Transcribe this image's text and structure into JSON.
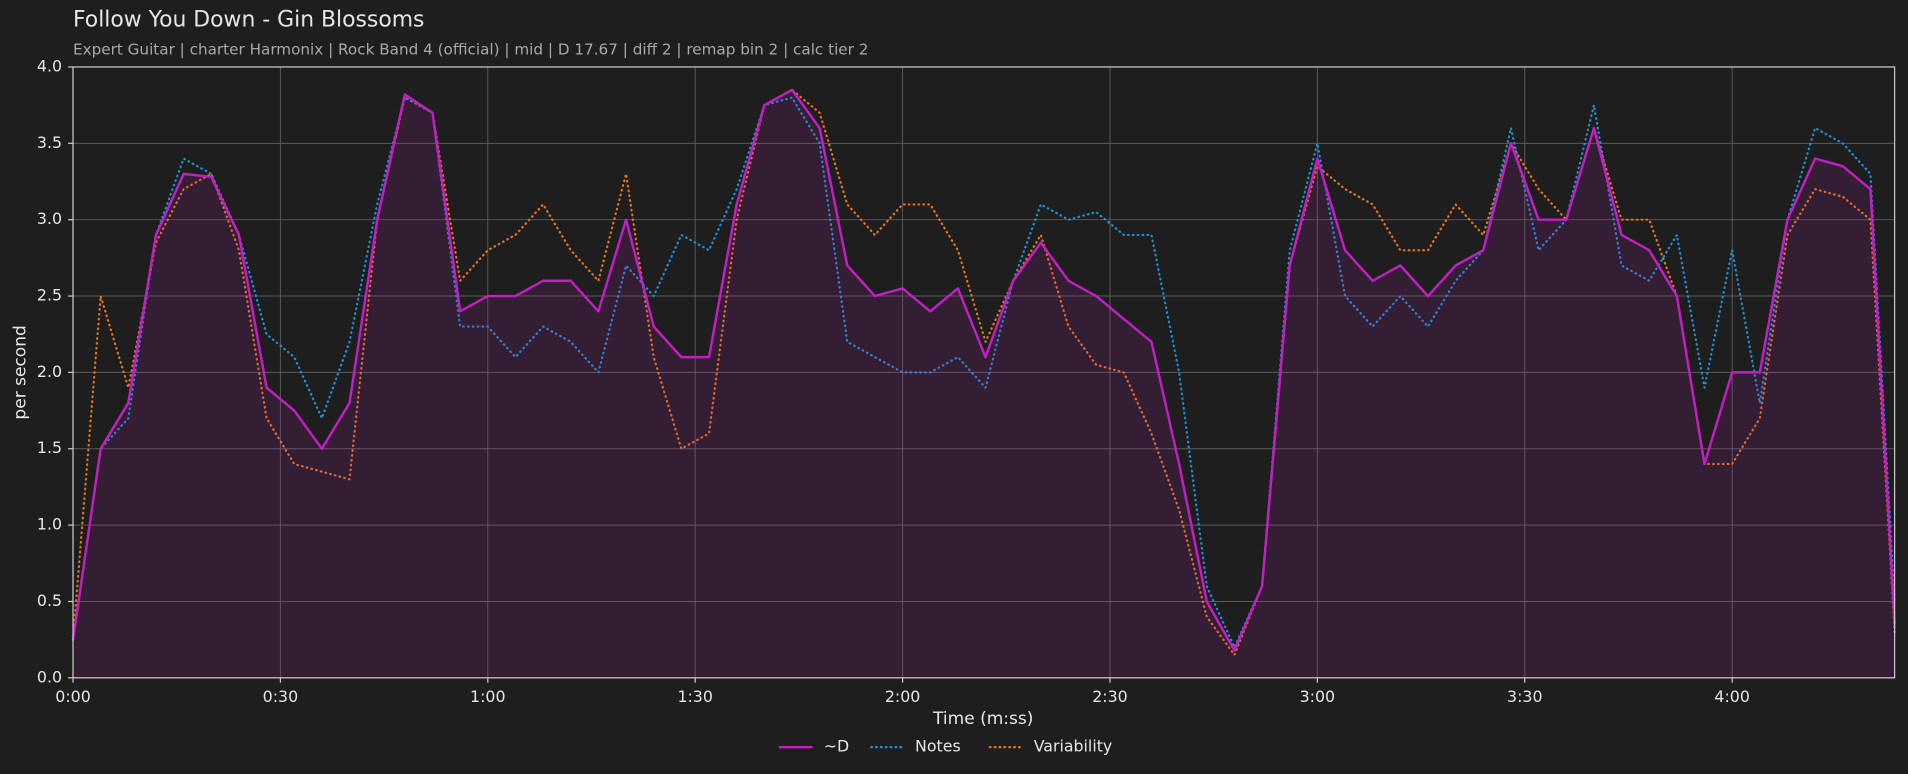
{
  "chart_data": {
    "type": "line",
    "title": "Follow You Down - Gin Blossoms",
    "subtitle": "Expert Guitar  |  charter Harmonix  |  Rock Band 4 (official)  |  mid  |  D 17.67  |  diff 2  |  remap bin 2  |  calc tier 2",
    "x_label": "Time (m:ss)",
    "y_label": "per second",
    "grid": true,
    "legend": "bottom",
    "xlim": [
      0,
      263.5
    ],
    "ylim": [
      0,
      4
    ],
    "xticks": [
      {
        "value": 0,
        "label": "0:00"
      },
      {
        "value": 30,
        "label": "0:30"
      },
      {
        "value": 60,
        "label": "1:00"
      },
      {
        "value": 90,
        "label": "1:30"
      },
      {
        "value": 120,
        "label": "2:00"
      },
      {
        "value": 150,
        "label": "2:30"
      },
      {
        "value": 180,
        "label": "3:00"
      },
      {
        "value": 210,
        "label": "3:30"
      },
      {
        "value": 240,
        "label": "4:00"
      }
    ],
    "yticks": [
      {
        "value": 0,
        "label": "0.0"
      },
      0.5,
      {
        "value": 1,
        "label": "1.0"
      },
      1.5,
      {
        "value": 2,
        "label": "2.0"
      },
      2.5,
      {
        "value": 3,
        "label": "3.0"
      },
      3.5,
      {
        "value": 4,
        "label": "4.0"
      }
    ],
    "x": [
      0,
      4,
      8,
      12,
      16,
      20,
      24,
      28,
      32,
      36,
      40,
      44,
      48,
      52,
      56,
      60,
      64,
      68,
      72,
      76,
      80,
      84,
      88,
      92,
      96,
      100,
      104,
      108,
      112,
      116,
      120,
      124,
      128,
      132,
      136,
      140,
      144,
      148,
      152,
      156,
      160,
      164,
      168,
      172,
      176,
      180,
      184,
      188,
      192,
      196,
      200,
      204,
      208,
      212,
      216,
      220,
      224,
      228,
      232,
      236,
      240,
      244,
      248,
      252,
      256,
      260,
      263.5
    ],
    "series": [
      {
        "name": "~D",
        "color": "#c21fc2",
        "fill": true,
        "values": [
          0.25,
          1.5,
          1.8,
          2.9,
          3.3,
          3.28,
          2.9,
          1.9,
          1.75,
          1.5,
          1.8,
          3.0,
          3.82,
          3.7,
          2.4,
          2.5,
          2.5,
          2.6,
          2.6,
          2.4,
          3.0,
          2.3,
          2.1,
          2.1,
          3.1,
          3.75,
          3.85,
          3.6,
          2.7,
          2.5,
          2.55,
          2.4,
          2.55,
          2.1,
          2.6,
          2.85,
          2.6,
          2.5,
          2.35,
          2.2,
          1.4,
          0.5,
          0.18,
          0.6,
          2.7,
          3.4,
          2.8,
          2.6,
          2.7,
          2.5,
          2.7,
          2.8,
          3.5,
          3.0,
          3.0,
          3.6,
          2.9,
          2.8,
          2.5,
          1.4,
          2.0,
          2.0,
          3.0,
          3.4,
          3.35,
          3.2,
          0.35
        ]
      },
      {
        "name": "Notes",
        "color": "#1f8fd6",
        "dotted": true,
        "values": [
          0.25,
          1.5,
          1.7,
          2.9,
          3.4,
          3.3,
          2.9,
          2.25,
          2.1,
          1.7,
          2.2,
          3.1,
          3.8,
          3.7,
          2.3,
          2.3,
          2.1,
          2.3,
          2.2,
          2.0,
          2.7,
          2.5,
          2.9,
          2.8,
          3.2,
          3.75,
          3.8,
          3.5,
          2.2,
          2.1,
          2.0,
          2.0,
          2.1,
          1.9,
          2.6,
          3.1,
          3.0,
          3.05,
          2.9,
          2.9,
          2.0,
          0.6,
          0.2,
          0.6,
          2.8,
          3.5,
          2.5,
          2.3,
          2.5,
          2.3,
          2.6,
          2.8,
          3.6,
          2.8,
          3.0,
          3.75,
          2.7,
          2.6,
          2.9,
          1.9,
          2.8,
          1.8,
          3.0,
          3.6,
          3.5,
          3.3,
          0.5
        ]
      },
      {
        "name": "Variability",
        "color": "#e8731e",
        "dotted": true,
        "values": [
          0.25,
          2.5,
          1.9,
          2.85,
          3.2,
          3.3,
          2.8,
          1.7,
          1.4,
          1.35,
          1.3,
          3.0,
          3.8,
          3.7,
          2.6,
          2.8,
          2.9,
          3.1,
          2.8,
          2.6,
          3.3,
          2.1,
          1.5,
          1.6,
          3.0,
          3.75,
          3.85,
          3.7,
          3.1,
          2.9,
          3.1,
          3.1,
          2.8,
          2.2,
          2.6,
          2.9,
          2.3,
          2.05,
          2.0,
          1.6,
          1.1,
          0.4,
          0.15,
          0.6,
          2.7,
          3.35,
          3.2,
          3.1,
          2.8,
          2.8,
          3.1,
          2.9,
          3.5,
          3.2,
          3.0,
          3.6,
          3.0,
          3.0,
          2.5,
          1.4,
          1.4,
          1.7,
          2.9,
          3.2,
          3.15,
          3.0,
          0.3
        ]
      }
    ]
  }
}
